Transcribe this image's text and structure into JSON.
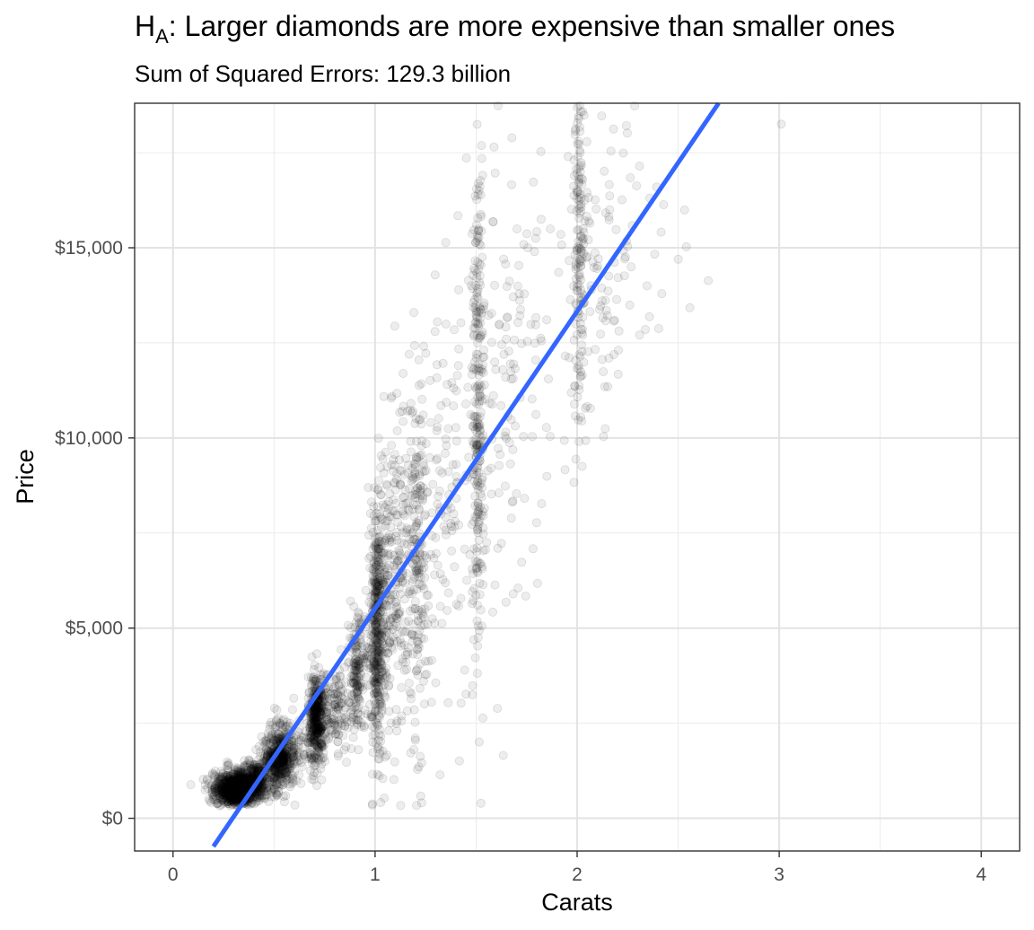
{
  "chart_data": {
    "type": "scatter",
    "title_main": "H",
    "title_subscript": "A",
    "title_rest": ": Larger diamonds are more expensive than smaller ones",
    "subtitle": "Sum of Squared Errors: 129.3 billion",
    "xlabel": "Carats",
    "ylabel": "Price",
    "xlim": [
      -0.19,
      4.19
    ],
    "ylim": [
      -860,
      18800
    ],
    "x_ticks": [
      0,
      1,
      2,
      3,
      4
    ],
    "x_tick_labels": [
      "0",
      "1",
      "2",
      "3",
      "4"
    ],
    "y_ticks": [
      0,
      5000,
      10000,
      15000
    ],
    "y_tick_labels": [
      "$0",
      "$5,000",
      "$10,000",
      "$15,000"
    ],
    "grid": true,
    "point_color": "#000000",
    "point_opacity": 0.07,
    "point_outline_opacity": 0.12,
    "line_color": "#3366FF",
    "fit_line": {
      "x": [
        0.2,
        2.7
      ],
      "y": [
        -740,
        18800
      ]
    },
    "sample_points": [
      {
        "x": 0.23,
        "y": 330
      },
      {
        "x": 0.3,
        "y": 620
      },
      {
        "x": 0.33,
        "y": 850
      },
      {
        "x": 0.41,
        "y": 1000
      },
      {
        "x": 0.5,
        "y": 1500
      },
      {
        "x": 0.55,
        "y": 1750
      },
      {
        "x": 0.7,
        "y": 2600
      },
      {
        "x": 0.72,
        "y": 2900
      },
      {
        "x": 0.9,
        "y": 3900
      },
      {
        "x": 1.0,
        "y": 4700
      },
      {
        "x": 1.01,
        "y": 6000
      },
      {
        "x": 1.2,
        "y": 5700
      },
      {
        "x": 1.5,
        "y": 9500
      },
      {
        "x": 1.51,
        "y": 13000
      },
      {
        "x": 2.0,
        "y": 15000
      },
      {
        "x": 2.01,
        "y": 16800
      },
      {
        "x": 2.5,
        "y": 14700
      },
      {
        "x": 3.01,
        "y": 18250
      }
    ],
    "clusters": [
      {
        "cx": 0.31,
        "cy": 780,
        "sx": 0.055,
        "sy": 220,
        "n": 900
      },
      {
        "cx": 0.4,
        "cy": 1000,
        "sx": 0.04,
        "sy": 250,
        "n": 300
      },
      {
        "cx": 0.52,
        "cy": 1500,
        "sx": 0.04,
        "sy": 400,
        "n": 420
      },
      {
        "cx": 0.56,
        "cy": 1900,
        "sx": 0.05,
        "sy": 400,
        "n": 140
      },
      {
        "cx": 0.71,
        "cy": 2600,
        "sx": 0.02,
        "sy": 600,
        "n": 400
      },
      {
        "cx": 0.79,
        "cy": 2900,
        "sx": 0.06,
        "sy": 550,
        "n": 180
      },
      {
        "cx": 0.91,
        "cy": 3800,
        "sx": 0.02,
        "sy": 800,
        "n": 160
      },
      {
        "cx": 1.01,
        "cy": 4800,
        "sx": 0.02,
        "sy": 1500,
        "n": 420
      },
      {
        "cx": 1.06,
        "cy": 6200,
        "sx": 0.05,
        "sy": 1600,
        "n": 130
      },
      {
        "cx": 1.11,
        "cy": 6500,
        "sx": 0.05,
        "sy": 2300,
        "n": 170
      },
      {
        "cx": 1.21,
        "cy": 6700,
        "sx": 0.02,
        "sy": 2200,
        "n": 150
      },
      {
        "cx": 1.28,
        "cy": 7700,
        "sx": 0.07,
        "sy": 2600,
        "n": 110
      },
      {
        "cx": 1.4,
        "cy": 9500,
        "sx": 0.06,
        "sy": 3000,
        "n": 60
      },
      {
        "cx": 1.51,
        "cy": 10800,
        "sx": 0.015,
        "sy": 3000,
        "n": 260
      },
      {
        "cx": 1.62,
        "cy": 11000,
        "sx": 0.07,
        "sy": 3200,
        "n": 90
      },
      {
        "cx": 1.78,
        "cy": 12500,
        "sx": 0.08,
        "sy": 3000,
        "n": 50
      },
      {
        "cx": 2.01,
        "cy": 15000,
        "sx": 0.015,
        "sy": 2300,
        "n": 150
      },
      {
        "cx": 2.15,
        "cy": 14800,
        "sx": 0.1,
        "sy": 2400,
        "n": 90
      },
      {
        "cx": 2.35,
        "cy": 15000,
        "sx": 0.15,
        "sy": 2200,
        "n": 20
      }
    ]
  }
}
